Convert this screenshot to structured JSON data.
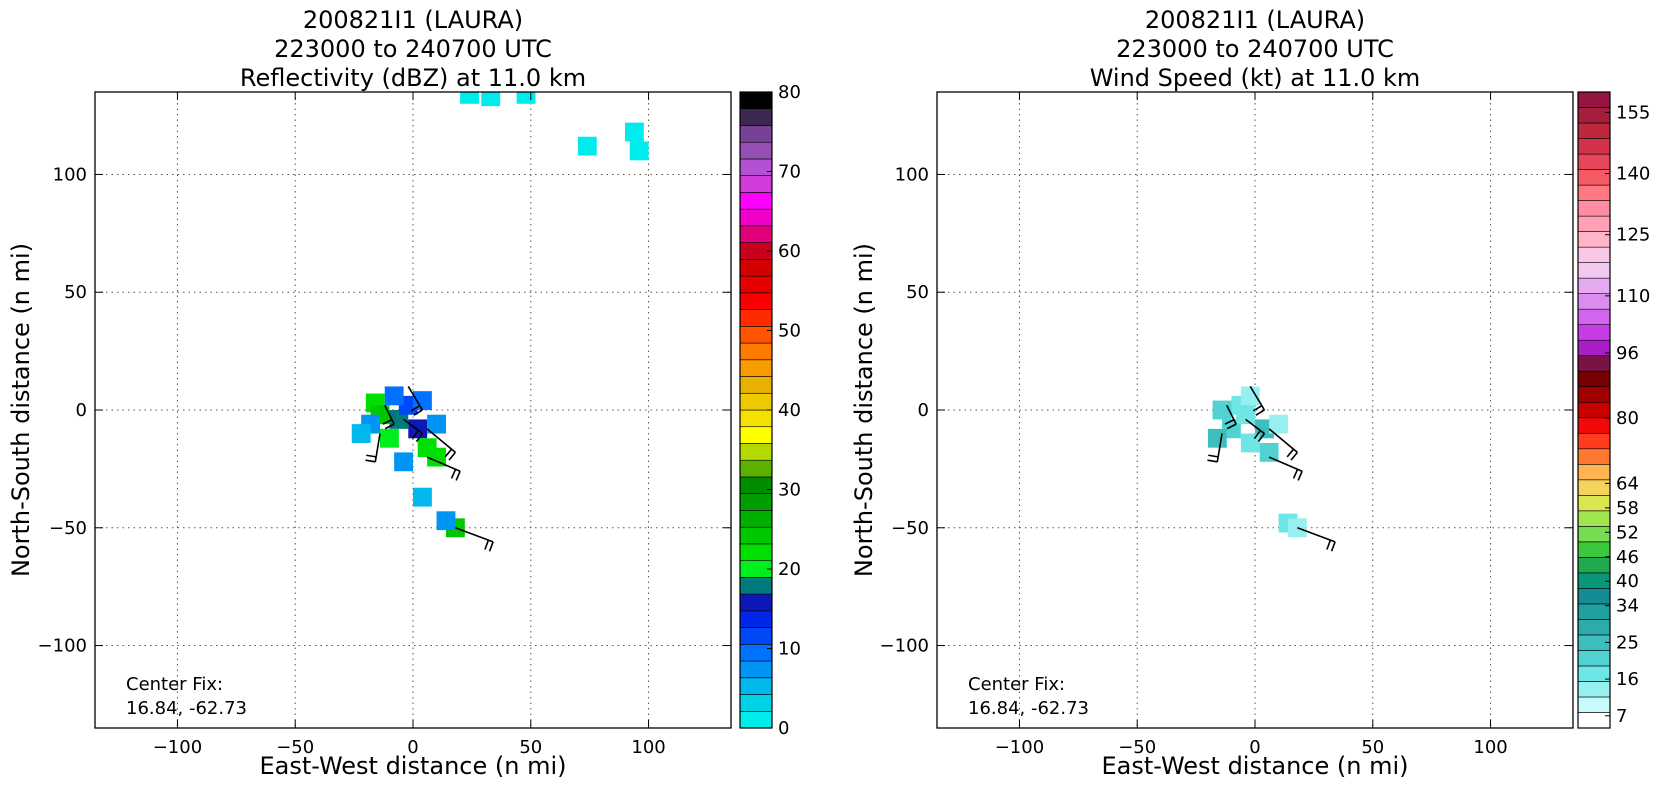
{
  "chart_data": [
    {
      "type": "heatmap",
      "title_lines": [
        "200821I1 (LAURA)",
        "223000 to 240700 UTC",
        "Reflectivity (dBZ) at 11.0 km"
      ],
      "xlabel": "East-West distance (n mi)",
      "ylabel": "North-South distance (n mi)",
      "xlim": [
        -135,
        135
      ],
      "ylim": [
        -135,
        135
      ],
      "xticks": [
        -100,
        -50,
        0,
        50,
        100
      ],
      "yticks": [
        -100,
        -50,
        0,
        50,
        100
      ],
      "xtick_labels": [
        "−100",
        "−50",
        "0",
        "50",
        "100"
      ],
      "ytick_labels": [
        "−100",
        "−50",
        "0",
        "50",
        "100"
      ],
      "grid": true,
      "annotation": [
        "Center Fix:",
        "16.84, -62.73"
      ],
      "colorbar": {
        "min": 0,
        "max": 80,
        "ticks": [
          0,
          10,
          20,
          30,
          40,
          50,
          60,
          70,
          80
        ],
        "tick_labels": [
          "0",
          "10",
          "20",
          "30",
          "40",
          "50",
          "60",
          "70",
          "80"
        ],
        "colors": [
          "#00ebeb",
          "#00d2e6",
          "#00b8ec",
          "#0094f5",
          "#0072ff",
          "#0047f5",
          "#0026e8",
          "#0c18b8",
          "#007a7a",
          "#00ee1c",
          "#00e000",
          "#00c800",
          "#00b000",
          "#009e00",
          "#008c00",
          "#5cb000",
          "#b4d900",
          "#ffff00",
          "#f5e100",
          "#ecc900",
          "#e8b000",
          "#f89c00",
          "#ff7a00",
          "#ff5400",
          "#ff2a00",
          "#fa0000",
          "#e60000",
          "#d20000",
          "#c8001e",
          "#e1007a",
          "#f000c8",
          "#ff00ff",
          "#d23cdc",
          "#b450d2",
          "#9650b4",
          "#784096",
          "#3c2850",
          "#000000"
        ]
      },
      "cells": [
        {
          "x": -16,
          "y": 3,
          "v": 22
        },
        {
          "x": -14,
          "y": -2,
          "v": 24
        },
        {
          "x": -18,
          "y": -6,
          "v": 8
        },
        {
          "x": -10,
          "y": -12,
          "v": 20
        },
        {
          "x": -6,
          "y": -4,
          "v": 18
        },
        {
          "x": -2,
          "y": 2,
          "v": 12
        },
        {
          "x": 2,
          "y": -8,
          "v": 16
        },
        {
          "x": 6,
          "y": -16,
          "v": 23
        },
        {
          "x": 10,
          "y": -20,
          "v": 22
        },
        {
          "x": -22,
          "y": -10,
          "v": 6
        },
        {
          "x": -4,
          "y": -22,
          "v": 8
        },
        {
          "x": -8,
          "y": 6,
          "v": 9
        },
        {
          "x": 4,
          "y": 4,
          "v": 10
        },
        {
          "x": 10,
          "y": -6,
          "v": 7
        },
        {
          "x": 18,
          "y": -50,
          "v": 24
        },
        {
          "x": 14,
          "y": -47,
          "v": 8
        },
        {
          "x": 4,
          "y": -37,
          "v": 5
        },
        {
          "x": 94,
          "y": 118,
          "v": 2
        },
        {
          "x": 96,
          "y": 110,
          "v": 1
        },
        {
          "x": 74,
          "y": 112,
          "v": 2
        },
        {
          "x": 48,
          "y": 134,
          "v": 1
        },
        {
          "x": 24,
          "y": 134,
          "v": 1
        },
        {
          "x": 33,
          "y": 133,
          "v": 2
        }
      ],
      "barbs": [
        {
          "x": -14,
          "y": -10,
          "u": -2,
          "v": -12
        },
        {
          "x": -4,
          "y": -4,
          "u": 8,
          "v": -6
        },
        {
          "x": 6,
          "y": -8,
          "u": 12,
          "v": -10
        },
        {
          "x": 6,
          "y": -20,
          "u": 14,
          "v": -6
        },
        {
          "x": -2,
          "y": 10,
          "u": 6,
          "v": -10
        },
        {
          "x": -12,
          "y": 2,
          "u": 4,
          "v": -8
        },
        {
          "x": 18,
          "y": -50,
          "u": 16,
          "v": -6
        }
      ]
    },
    {
      "type": "heatmap",
      "title_lines": [
        "200821I1 (LAURA)",
        "223000 to 240700 UTC",
        "Wind Speed (kt) at 11.0 km"
      ],
      "xlabel": "East-West distance (n mi)",
      "ylabel": "North-South distance (n mi)",
      "xlim": [
        -135,
        135
      ],
      "ylim": [
        -135,
        135
      ],
      "xticks": [
        -100,
        -50,
        0,
        50,
        100
      ],
      "yticks": [
        -100,
        -50,
        0,
        50,
        100
      ],
      "xtick_labels": [
        "−100",
        "−50",
        "0",
        "50",
        "100"
      ],
      "ytick_labels": [
        "−100",
        "−50",
        "0",
        "50",
        "100"
      ],
      "grid": true,
      "annotation": [
        "Center Fix:",
        "16.84, -62.73"
      ],
      "colorbar": {
        "min": 4,
        "max": 160,
        "ticks": [
          7,
          16,
          25,
          34,
          40,
          46,
          52,
          58,
          64,
          80,
          96,
          110,
          125,
          140,
          155
        ],
        "tick_labels": [
          "7",
          "16",
          "25",
          "34",
          "40",
          "46",
          "52",
          "58",
          "64",
          "80",
          "96",
          "110",
          "125",
          "140",
          "155"
        ],
        "colors": [
          "#ffffff",
          "#c8fafa",
          "#96f0f0",
          "#6ee6e6",
          "#50d2d2",
          "#3cbebe",
          "#2daaaa",
          "#20a0a0",
          "#148c96",
          "#0a9678",
          "#20aa50",
          "#3cc83c",
          "#78dc50",
          "#a0e650",
          "#dce650",
          "#f5d25a",
          "#ffb450",
          "#ff7832",
          "#ff3c1e",
          "#f00a0a",
          "#c80000",
          "#a00000",
          "#780000",
          "#781444",
          "#aa1ec8",
          "#c83ce6",
          "#d264f0",
          "#dc8cf0",
          "#e6aaf0",
          "#f0c8f0",
          "#fac8e6",
          "#ffb4c8",
          "#ffa0b4",
          "#ff8ca0",
          "#ff7882",
          "#f55a64",
          "#e6465a",
          "#d2324b",
          "#be283c",
          "#a51e3c",
          "#961441"
        ]
      },
      "cells": [
        {
          "x": -14,
          "y": 0,
          "v": 22
        },
        {
          "x": -6,
          "y": 2,
          "v": 16
        },
        {
          "x": -2,
          "y": 6,
          "v": 12
        },
        {
          "x": -10,
          "y": -8,
          "v": 20
        },
        {
          "x": -4,
          "y": -2,
          "v": 18
        },
        {
          "x": 4,
          "y": -8,
          "v": 24
        },
        {
          "x": -2,
          "y": -14,
          "v": 18
        },
        {
          "x": 6,
          "y": -18,
          "v": 22
        },
        {
          "x": 10,
          "y": -6,
          "v": 14
        },
        {
          "x": -16,
          "y": -12,
          "v": 26
        },
        {
          "x": 14,
          "y": -48,
          "v": 16
        },
        {
          "x": 18,
          "y": -50,
          "v": 12
        }
      ],
      "barbs": [
        {
          "x": -14,
          "y": -10,
          "u": -2,
          "v": -12
        },
        {
          "x": -4,
          "y": -4,
          "u": 8,
          "v": -6
        },
        {
          "x": 6,
          "y": -8,
          "u": 12,
          "v": -10
        },
        {
          "x": 6,
          "y": -20,
          "u": 14,
          "v": -6
        },
        {
          "x": -2,
          "y": 10,
          "u": 6,
          "v": -10
        },
        {
          "x": -12,
          "y": 2,
          "u": 4,
          "v": -8
        },
        {
          "x": 18,
          "y": -50,
          "u": 16,
          "v": -6
        }
      ]
    }
  ]
}
